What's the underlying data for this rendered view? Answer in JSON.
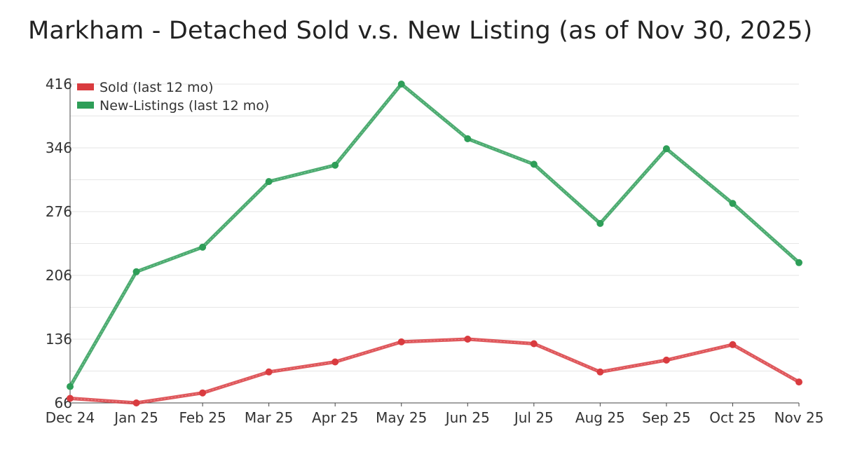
{
  "chart_data": {
    "type": "line",
    "title": "Markham - Detached Sold v.s. New Listing (as of Nov 30, 2025)",
    "xlabel": "",
    "ylabel": "",
    "categories": [
      "Dec 24",
      "Jan 25",
      "Feb 25",
      "Mar 25",
      "Apr 25",
      "May 25",
      "Jun 25",
      "Jul 25",
      "Aug 25",
      "Sep 25",
      "Oct 25",
      "Nov 25"
    ],
    "ylim": [
      66,
      416
    ],
    "yticks": [
      66,
      136,
      206,
      276,
      346,
      416
    ],
    "grid": true,
    "legend_position": "top-left",
    "series": [
      {
        "name": "Sold (last 12 mo)",
        "color": "#d93b3f",
        "values": [
          71,
          66,
          77,
          100,
          111,
          133,
          136,
          131,
          100,
          113,
          130,
          89
        ]
      },
      {
        "name": "New-Listings (last 12 mo)",
        "color": "#2e9e58",
        "values": [
          84,
          210,
          237,
          309,
          327,
          416,
          356,
          328,
          263,
          345,
          285,
          220
        ]
      }
    ]
  }
}
